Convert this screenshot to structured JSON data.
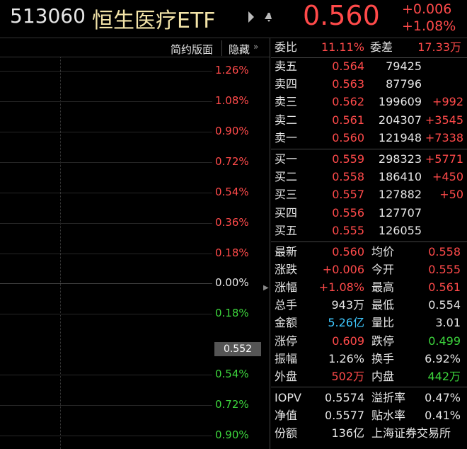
{
  "header": {
    "code": "513060",
    "name": "恒生医疗ETF",
    "price": "0.560",
    "change": "+0.006",
    "change_pct": "+1.08%"
  },
  "toolbar": {
    "simple_layout": "简约版面",
    "hide": "隐藏"
  },
  "chart": {
    "axis_labels": [
      "1.26%",
      "1.08%",
      "0.90%",
      "0.72%",
      "0.54%",
      "0.36%",
      "0.18%",
      "0.00%",
      "0.18%",
      "0.54%",
      "0.72%",
      "0.90%"
    ],
    "cursor_price": "0.552"
  },
  "order_ratio": [
    "委比",
    "11.11%",
    "委差",
    "17.33万"
  ],
  "asks": [
    [
      "卖五",
      "0.564",
      "79425"
    ],
    [
      "卖四",
      "0.563",
      "87796"
    ],
    [
      "卖三",
      "0.562",
      "199609",
      "+992"
    ],
    [
      "卖二",
      "0.561",
      "204307",
      "+3545"
    ],
    [
      "卖一",
      "0.560",
      "121948",
      "+7338"
    ]
  ],
  "bids": [
    [
      "买一",
      "0.559",
      "298323",
      "+5771"
    ],
    [
      "买二",
      "0.558",
      "186410",
      "+450"
    ],
    [
      "买三",
      "0.557",
      "127882",
      "+50"
    ],
    [
      "买四",
      "0.556",
      "127707"
    ],
    [
      "买五",
      "0.555",
      "126055"
    ]
  ],
  "stats": [
    [
      "最新",
      "0.560",
      "均价",
      "0.558"
    ],
    [
      "涨跌",
      "+0.006",
      "今开",
      "0.555"
    ],
    [
      "涨幅",
      "+1.08%",
      "最高",
      "0.561"
    ],
    [
      "总手",
      "943万",
      "最低",
      "0.554"
    ],
    [
      "金额",
      "5.26亿",
      "量比",
      "3.01"
    ],
    [
      "涨停",
      "0.609",
      "跌停",
      "0.499"
    ],
    [
      "振幅",
      "1.26%",
      "换手",
      "6.92%"
    ],
    [
      "外盘",
      "502万",
      "内盘",
      "442万"
    ]
  ],
  "info": [
    [
      "IOPV",
      "0.5574",
      "溢折率",
      "0.47%"
    ],
    [
      "净值",
      "0.5577",
      "贴水率",
      "0.41%"
    ],
    [
      "份额",
      "136亿",
      "上海证券交易所"
    ]
  ]
}
